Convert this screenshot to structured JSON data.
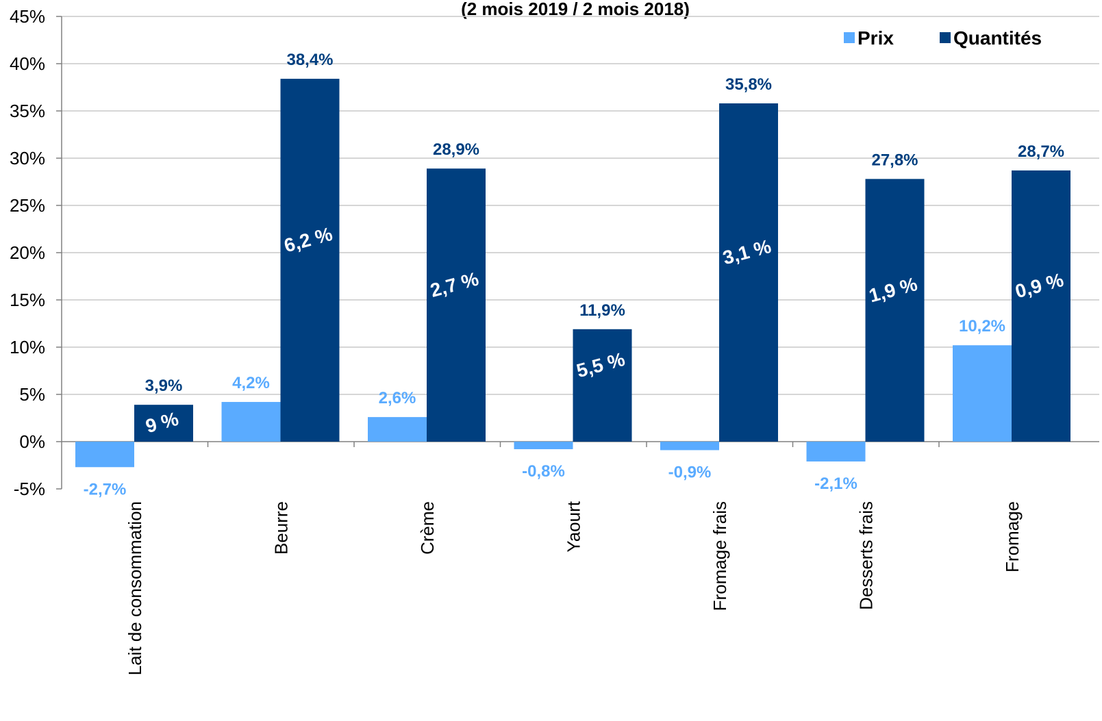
{
  "chart_data": {
    "type": "bar",
    "subtitle": "(2 mois 2019 / 2 mois 2018)",
    "categories": [
      "Lait de consommation",
      "Beurre",
      "Crème",
      "Yaourt",
      "Fromage frais",
      "Desserts frais",
      "Fromage"
    ],
    "series": [
      {
        "name": "Prix",
        "color": "#5aabff",
        "values": [
          -2.7,
          4.2,
          2.6,
          -0.8,
          -0.9,
          -2.1,
          10.2
        ],
        "labels": [
          "-2,7%",
          "4,2%",
          "2,6%",
          "-0,8%",
          "-0,9%",
          "-2,1%",
          "10,2%"
        ]
      },
      {
        "name": "Quantités",
        "color": "#003f7f",
        "values": [
          3.9,
          38.4,
          28.9,
          11.9,
          35.8,
          27.8,
          28.7
        ],
        "labels": [
          "3,9%",
          "38,4%",
          "28,9%",
          "11,9%",
          "35,8%",
          "27,8%",
          "28,7%"
        ]
      }
    ],
    "inner_labels": [
      "9 %",
      "6,2 %",
      "2,7 %",
      "5,5 %",
      "3,1 %",
      "1,9 %",
      "0,9 %"
    ],
    "yticks": [
      -5,
      0,
      5,
      10,
      15,
      20,
      25,
      30,
      35,
      40,
      45
    ],
    "ytick_labels": [
      "-5%",
      "0%",
      "5%",
      "10%",
      "15%",
      "20%",
      "25%",
      "30%",
      "35%",
      "40%",
      "45%"
    ],
    "ylim": [
      -5,
      45
    ],
    "grid": true,
    "legend_position": "top-right"
  }
}
